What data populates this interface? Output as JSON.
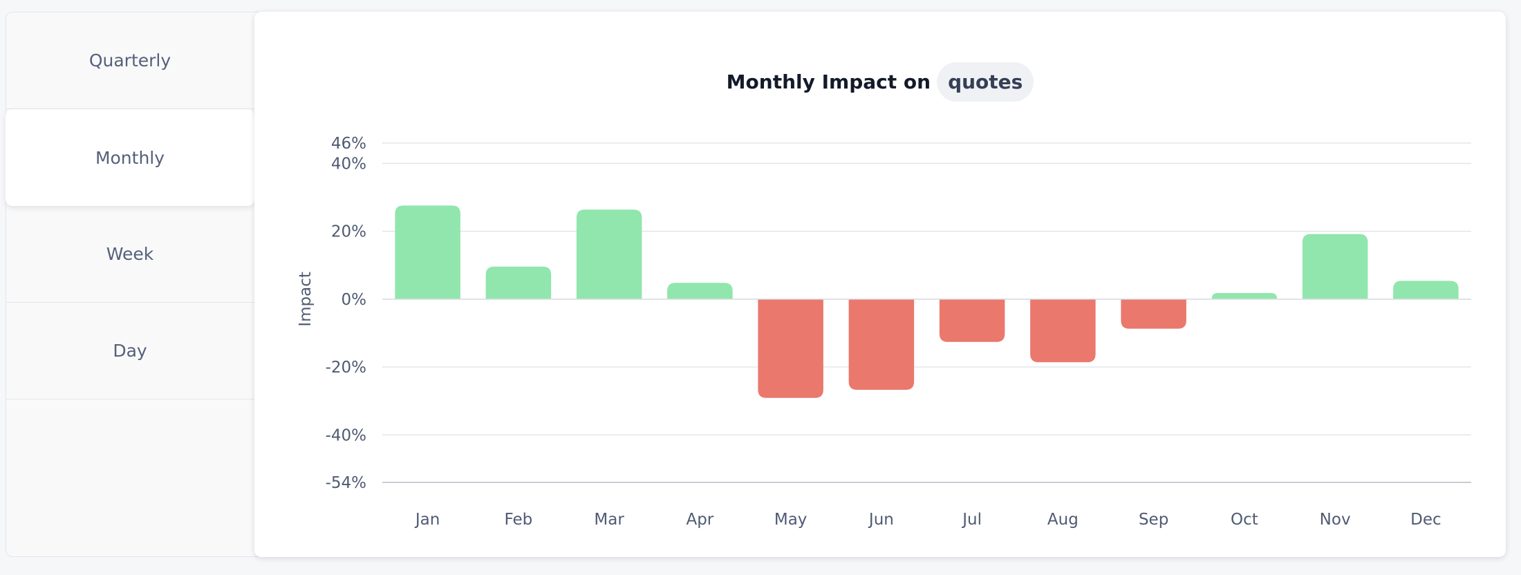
{
  "tabs": [
    {
      "label": "Quarterly",
      "active": false
    },
    {
      "label": "Monthly",
      "active": true
    },
    {
      "label": "Week",
      "active": false
    },
    {
      "label": "Day",
      "active": false
    }
  ],
  "chart": {
    "title_prefix": "Monthly Impact on",
    "title_metric": "quotes"
  },
  "colors": {
    "positive": "#90e6ac",
    "negative": "#ea786d"
  },
  "chart_data": {
    "type": "bar",
    "title": "Monthly Impact on quotes",
    "xlabel": "",
    "ylabel": "Impact",
    "categories": [
      "Jan",
      "Feb",
      "Mar",
      "Apr",
      "May",
      "Jun",
      "Jul",
      "Aug",
      "Sep",
      "Oct",
      "Nov",
      "Dec"
    ],
    "values": [
      27.6,
      9.6,
      26.4,
      4.8,
      -29.1,
      -26.7,
      -12.6,
      -18.6,
      -8.7,
      1.8,
      19.2,
      5.4
    ],
    "unit": "%",
    "ylim": [
      -54,
      46
    ],
    "yticks": [
      "46%",
      "40%",
      "20%",
      "0%",
      "-20%",
      "-40%",
      "-54%"
    ],
    "ytick_values": [
      46,
      40,
      20,
      0,
      -20,
      -40,
      -54
    ],
    "grid": true,
    "legend": "none"
  }
}
